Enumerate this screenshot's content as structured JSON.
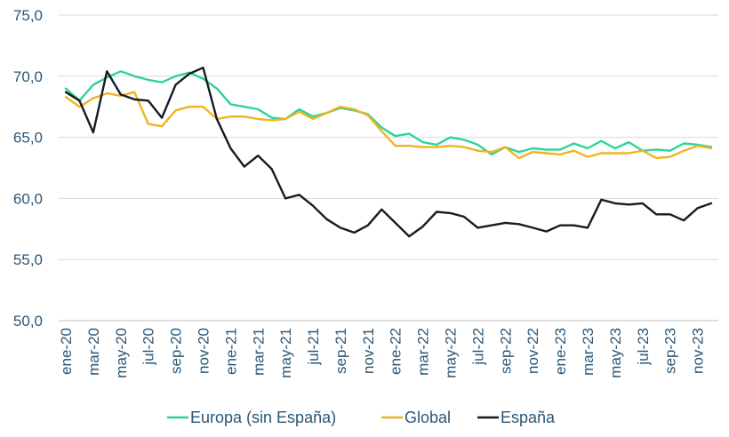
{
  "chart_data": {
    "type": "line",
    "title": "",
    "xlabel": "",
    "ylabel": "",
    "ylim": [
      50,
      75
    ],
    "yticks": [
      "50,0",
      "55,0",
      "60,0",
      "65,0",
      "70,0",
      "75,0"
    ],
    "grid": "horizontal",
    "legend": "bottom",
    "x_tick_labels": [
      "ene-20",
      "mar-20",
      "may-20",
      "jul-20",
      "sep-20",
      "nov-20",
      "ene-21",
      "mar-21",
      "may-21",
      "jul-21",
      "sep-21",
      "nov-21",
      "ene-22",
      "mar-22",
      "may-22",
      "jul-22",
      "sep-22",
      "nov-22",
      "ene-23",
      "mar-23",
      "may-23",
      "jul-23",
      "sep-23",
      "nov-23"
    ],
    "x": [
      "ene-20",
      "feb-20",
      "mar-20",
      "abr-20",
      "may-20",
      "jun-20",
      "jul-20",
      "ago-20",
      "sep-20",
      "oct-20",
      "nov-20",
      "dic-20",
      "ene-21",
      "feb-21",
      "mar-21",
      "abr-21",
      "may-21",
      "jun-21",
      "jul-21",
      "ago-21",
      "sep-21",
      "oct-21",
      "nov-21",
      "dic-21",
      "ene-22",
      "feb-22",
      "mar-22",
      "abr-22",
      "may-22",
      "jun-22",
      "jul-22",
      "ago-22",
      "sep-22",
      "oct-22",
      "nov-22",
      "dic-22",
      "ene-23",
      "feb-23",
      "mar-23",
      "abr-23",
      "may-23",
      "jun-23",
      "jul-23",
      "ago-23",
      "sep-23",
      "oct-23",
      "nov-23",
      "dic-23"
    ],
    "series": [
      {
        "name": "Europa (sin España)",
        "color": "#2ed39a",
        "values": [
          69.0,
          68.0,
          69.3,
          69.9,
          70.4,
          70.0,
          69.7,
          69.5,
          70.0,
          70.3,
          69.8,
          69.0,
          67.7,
          67.5,
          67.3,
          66.6,
          66.5,
          67.3,
          66.7,
          67.0,
          67.4,
          67.2,
          66.9,
          65.8,
          65.1,
          65.3,
          64.6,
          64.4,
          65.0,
          64.8,
          64.4,
          63.6,
          64.2,
          63.8,
          64.1,
          64.0,
          64.0,
          64.5,
          64.1,
          64.7,
          64.1,
          64.6,
          63.9,
          64.0,
          63.9,
          64.5,
          64.4,
          64.2
        ]
      },
      {
        "name": "Global",
        "color": "#f0b323",
        "values": [
          68.3,
          67.5,
          68.2,
          68.6,
          68.4,
          68.7,
          66.1,
          65.9,
          67.2,
          67.5,
          67.5,
          66.5,
          66.7,
          66.7,
          66.5,
          66.4,
          66.5,
          67.1,
          66.5,
          67.0,
          67.5,
          67.3,
          66.8,
          65.5,
          64.3,
          64.3,
          64.2,
          64.2,
          64.3,
          64.2,
          63.9,
          63.8,
          64.2,
          63.3,
          63.8,
          63.7,
          63.6,
          63.9,
          63.4,
          63.7,
          63.7,
          63.7,
          63.9,
          63.3,
          63.4,
          63.9,
          64.3,
          64.1
        ]
      },
      {
        "name": "España",
        "color": "#141c24",
        "values": [
          68.7,
          68.0,
          65.4,
          70.4,
          68.5,
          68.1,
          68.0,
          66.6,
          69.3,
          70.2,
          70.7,
          66.5,
          64.1,
          62.6,
          63.5,
          62.4,
          60.0,
          60.3,
          59.4,
          58.3,
          57.6,
          57.2,
          57.8,
          59.1,
          58.0,
          56.9,
          57.7,
          58.9,
          58.8,
          58.5,
          57.6,
          57.8,
          58.0,
          57.9,
          57.6,
          57.3,
          57.8,
          57.8,
          57.6,
          59.9,
          59.6,
          59.5,
          59.6,
          58.7,
          58.7,
          58.2,
          59.2,
          59.6
        ]
      }
    ]
  }
}
